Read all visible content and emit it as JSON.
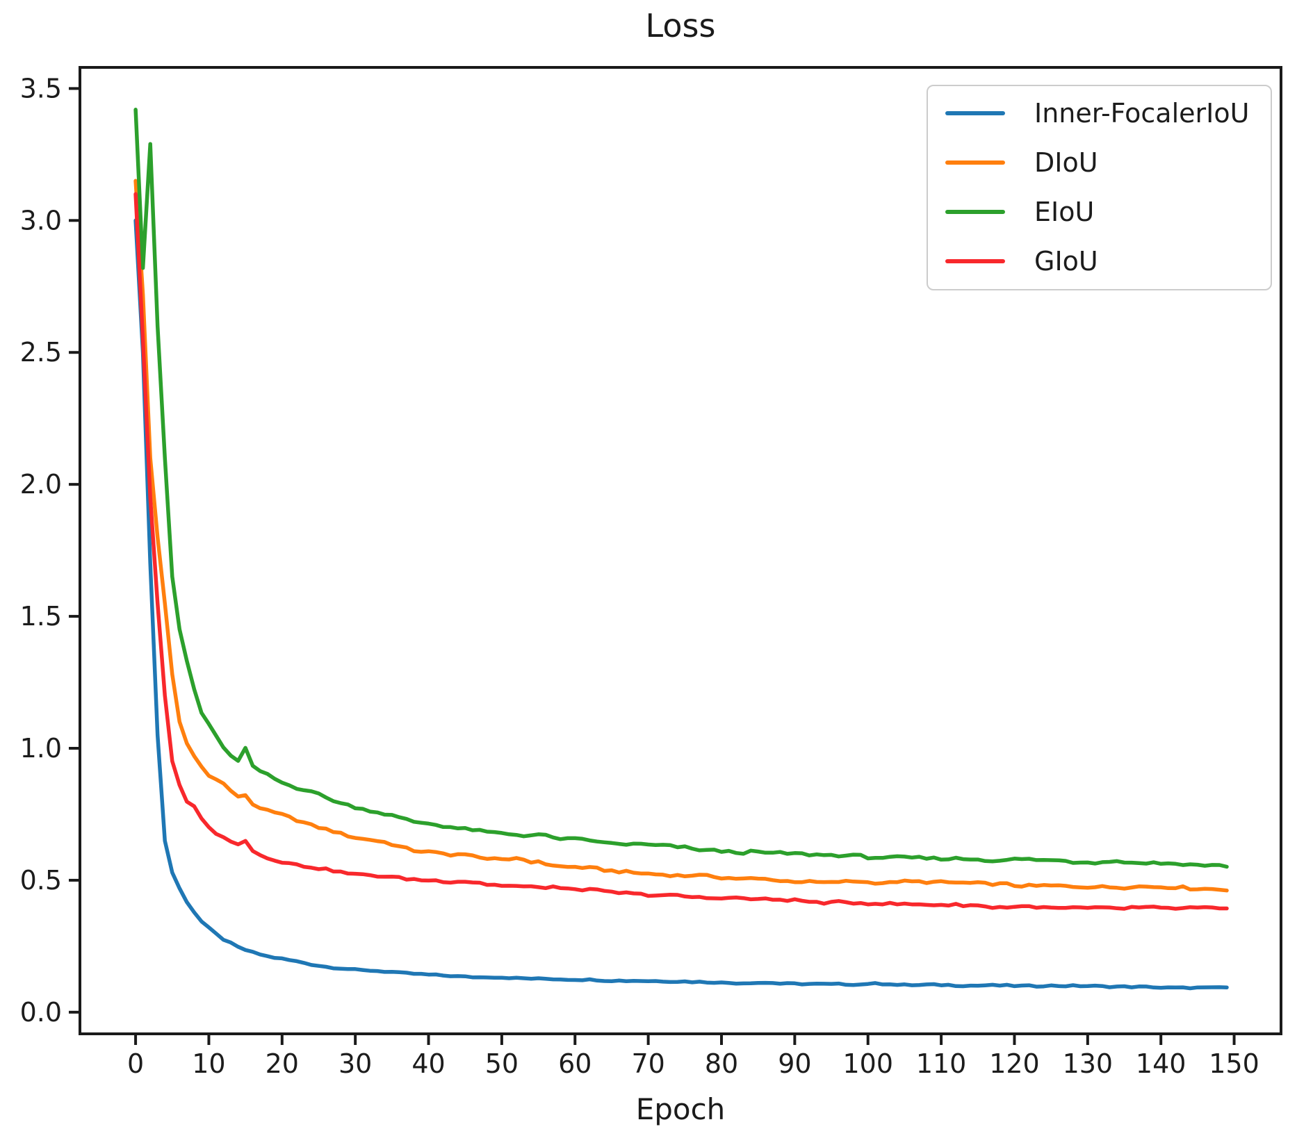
{
  "chart_data": {
    "type": "line",
    "title": "Loss",
    "xlabel": "Epoch",
    "ylabel": "",
    "grid": false,
    "legend_position": "upper right",
    "xlim": [
      -7.6,
      156.4
    ],
    "ylim": [
      -0.082,
      3.58
    ],
    "xtick_values": [
      0,
      10,
      20,
      30,
      40,
      50,
      60,
      70,
      80,
      90,
      100,
      110,
      120,
      130,
      140,
      150
    ],
    "xtick_labels": [
      "0",
      "10",
      "20",
      "30",
      "40",
      "50",
      "60",
      "70",
      "80",
      "90",
      "100",
      "110",
      "120",
      "130",
      "140",
      "150"
    ],
    "ytick_values": [
      0.0,
      0.5,
      1.0,
      1.5,
      2.0,
      2.5,
      3.0,
      3.5
    ],
    "ytick_labels": [
      "0.0",
      "0.5",
      "1.0",
      "1.5",
      "2.0",
      "2.5",
      "3.0",
      "3.5"
    ],
    "x_unit": "epoch",
    "x_range": [
      0,
      149
    ],
    "axis_color": "#1a1a1a",
    "series": [
      {
        "name": "Inner-FocalerIoU",
        "color": "#1f77b4",
        "points": [
          [
            0,
            3.0
          ],
          [
            1,
            2.5
          ],
          [
            2,
            1.7
          ],
          [
            3,
            1.05
          ],
          [
            4,
            0.65
          ],
          [
            5,
            0.53
          ],
          [
            6,
            0.47
          ],
          [
            7,
            0.42
          ],
          [
            8,
            0.38
          ],
          [
            9,
            0.345
          ],
          [
            10,
            0.32
          ],
          [
            12,
            0.275
          ],
          [
            14,
            0.245
          ],
          [
            16,
            0.225
          ],
          [
            18,
            0.21
          ],
          [
            20,
            0.2
          ],
          [
            23,
            0.185
          ],
          [
            26,
            0.172
          ],
          [
            30,
            0.16
          ],
          [
            35,
            0.15
          ],
          [
            40,
            0.142
          ],
          [
            45,
            0.135
          ],
          [
            50,
            0.13
          ],
          [
            55,
            0.126
          ],
          [
            60,
            0.122
          ],
          [
            65,
            0.12
          ],
          [
            70,
            0.117
          ],
          [
            75,
            0.115
          ],
          [
            80,
            0.113
          ],
          [
            85,
            0.111
          ],
          [
            90,
            0.11
          ],
          [
            95,
            0.108
          ],
          [
            100,
            0.106
          ],
          [
            110,
            0.103
          ],
          [
            120,
            0.1
          ],
          [
            130,
            0.097
          ],
          [
            140,
            0.094
          ],
          [
            149,
            0.092
          ]
        ]
      },
      {
        "name": "DIoU",
        "color": "#ff7f0e",
        "points": [
          [
            0,
            3.15
          ],
          [
            1,
            2.72
          ],
          [
            2,
            2.1
          ],
          [
            3,
            1.8
          ],
          [
            4,
            1.55
          ],
          [
            5,
            1.28
          ],
          [
            6,
            1.1
          ],
          [
            7,
            1.02
          ],
          [
            8,
            0.97
          ],
          [
            9,
            0.93
          ],
          [
            10,
            0.9
          ],
          [
            12,
            0.862
          ],
          [
            14,
            0.81
          ],
          [
            15,
            0.82
          ],
          [
            16,
            0.79
          ],
          [
            18,
            0.765
          ],
          [
            20,
            0.75
          ],
          [
            22,
            0.73
          ],
          [
            24,
            0.71
          ],
          [
            26,
            0.695
          ],
          [
            28,
            0.68
          ],
          [
            30,
            0.665
          ],
          [
            32,
            0.655
          ],
          [
            34,
            0.645
          ],
          [
            36,
            0.63
          ],
          [
            38,
            0.615
          ],
          [
            40,
            0.61
          ],
          [
            43,
            0.6
          ],
          [
            46,
            0.59
          ],
          [
            50,
            0.58
          ],
          [
            52,
            0.585
          ],
          [
            54,
            0.57
          ],
          [
            56,
            0.565
          ],
          [
            58,
            0.555
          ],
          [
            60,
            0.55
          ],
          [
            63,
            0.543
          ],
          [
            66,
            0.535
          ],
          [
            70,
            0.528
          ],
          [
            73,
            0.522
          ],
          [
            76,
            0.517
          ],
          [
            80,
            0.51
          ],
          [
            84,
            0.503
          ],
          [
            88,
            0.5
          ],
          [
            92,
            0.497
          ],
          [
            96,
            0.493
          ],
          [
            100,
            0.495
          ],
          [
            105,
            0.492
          ],
          [
            110,
            0.49
          ],
          [
            115,
            0.486
          ],
          [
            120,
            0.483
          ],
          [
            125,
            0.48
          ],
          [
            130,
            0.477
          ],
          [
            135,
            0.474
          ],
          [
            140,
            0.471
          ],
          [
            145,
            0.468
          ],
          [
            149,
            0.465
          ]
        ]
      },
      {
        "name": "EIoU",
        "color": "#2ca02c",
        "points": [
          [
            0,
            3.42
          ],
          [
            1,
            2.82
          ],
          [
            2,
            3.29
          ],
          [
            3,
            2.6
          ],
          [
            4,
            2.1
          ],
          [
            5,
            1.65
          ],
          [
            6,
            1.45
          ],
          [
            7,
            1.33
          ],
          [
            8,
            1.22
          ],
          [
            9,
            1.13
          ],
          [
            10,
            1.09
          ],
          [
            11,
            1.04
          ],
          [
            12,
            1.0
          ],
          [
            13,
            0.975
          ],
          [
            14,
            0.95
          ],
          [
            15,
            1.0
          ],
          [
            16,
            0.93
          ],
          [
            17,
            0.915
          ],
          [
            18,
            0.9
          ],
          [
            19,
            0.885
          ],
          [
            20,
            0.87
          ],
          [
            22,
            0.85
          ],
          [
            24,
            0.84
          ],
          [
            26,
            0.815
          ],
          [
            28,
            0.795
          ],
          [
            30,
            0.78
          ],
          [
            32,
            0.765
          ],
          [
            34,
            0.752
          ],
          [
            36,
            0.74
          ],
          [
            38,
            0.725
          ],
          [
            40,
            0.718
          ],
          [
            42,
            0.708
          ],
          [
            44,
            0.7
          ],
          [
            46,
            0.695
          ],
          [
            48,
            0.685
          ],
          [
            50,
            0.68
          ],
          [
            53,
            0.672
          ],
          [
            55,
            0.675
          ],
          [
            57,
            0.66
          ],
          [
            60,
            0.652
          ],
          [
            63,
            0.645
          ],
          [
            66,
            0.64
          ],
          [
            70,
            0.635
          ],
          [
            74,
            0.625
          ],
          [
            78,
            0.617
          ],
          [
            82,
            0.61
          ],
          [
            86,
            0.603
          ],
          [
            90,
            0.598
          ],
          [
            95,
            0.594
          ],
          [
            100,
            0.59
          ],
          [
            105,
            0.587
          ],
          [
            110,
            0.585
          ],
          [
            115,
            0.58
          ],
          [
            120,
            0.578
          ],
          [
            125,
            0.574
          ],
          [
            130,
            0.572
          ],
          [
            135,
            0.568
          ],
          [
            140,
            0.566
          ],
          [
            145,
            0.562
          ],
          [
            149,
            0.558
          ]
        ]
      },
      {
        "name": "GIoU",
        "color": "#f8282c",
        "points": [
          [
            0,
            3.1
          ],
          [
            1,
            2.55
          ],
          [
            2,
            1.95
          ],
          [
            3,
            1.55
          ],
          [
            4,
            1.2
          ],
          [
            5,
            0.95
          ],
          [
            6,
            0.86
          ],
          [
            7,
            0.8
          ],
          [
            8,
            0.775
          ],
          [
            9,
            0.735
          ],
          [
            10,
            0.7
          ],
          [
            11,
            0.67
          ],
          [
            12,
            0.66
          ],
          [
            13,
            0.648
          ],
          [
            14,
            0.638
          ],
          [
            15,
            0.65
          ],
          [
            16,
            0.61
          ],
          [
            17,
            0.595
          ],
          [
            18,
            0.585
          ],
          [
            20,
            0.57
          ],
          [
            22,
            0.558
          ],
          [
            24,
            0.55
          ],
          [
            26,
            0.54
          ],
          [
            28,
            0.533
          ],
          [
            30,
            0.525
          ],
          [
            32,
            0.52
          ],
          [
            34,
            0.515
          ],
          [
            36,
            0.51
          ],
          [
            38,
            0.505
          ],
          [
            40,
            0.5
          ],
          [
            43,
            0.495
          ],
          [
            46,
            0.49
          ],
          [
            50,
            0.484
          ],
          [
            53,
            0.479
          ],
          [
            55,
            0.475
          ],
          [
            57,
            0.479
          ],
          [
            59,
            0.468
          ],
          [
            62,
            0.462
          ],
          [
            65,
            0.455
          ],
          [
            68,
            0.45
          ],
          [
            71,
            0.446
          ],
          [
            74,
            0.442
          ],
          [
            77,
            0.438
          ],
          [
            80,
            0.434
          ],
          [
            84,
            0.429
          ],
          [
            88,
            0.425
          ],
          [
            92,
            0.42
          ],
          [
            96,
            0.416
          ],
          [
            100,
            0.412
          ],
          [
            105,
            0.409
          ],
          [
            110,
            0.406
          ],
          [
            115,
            0.403
          ],
          [
            120,
            0.4
          ],
          [
            125,
            0.398
          ],
          [
            130,
            0.396
          ],
          [
            135,
            0.394
          ],
          [
            140,
            0.393
          ],
          [
            145,
            0.392
          ],
          [
            149,
            0.39
          ]
        ]
      }
    ]
  }
}
